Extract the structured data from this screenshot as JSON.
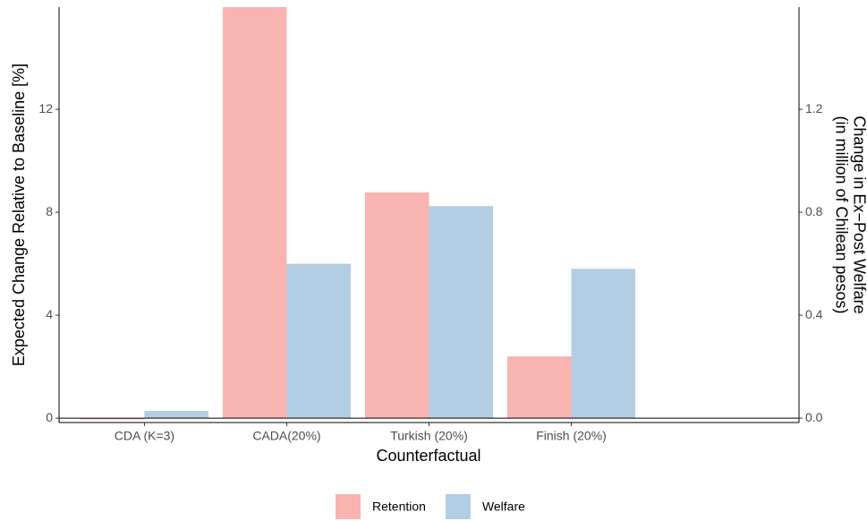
{
  "chart_data": {
    "type": "bar",
    "x_label": "Counterfactual",
    "y_label": "Expected Change Relative to Baseline [%]",
    "y2_label": [
      "Change in Ex−Post Welfare",
      "(in million of Chilean pesos)"
    ],
    "categories": [
      "CDA (K=3)",
      "CADA(20%)",
      "Turkish (20%)",
      "Finish (20%)"
    ],
    "series": [
      {
        "name": "Retention",
        "color": "#f8b4b0",
        "values": [
          -0.05,
          16,
          8.77,
          2.4
        ]
      },
      {
        "name": "Welfare",
        "color": "#b3cde3",
        "axis": "y2",
        "values": [
          0.028,
          0.6,
          0.824,
          0.58
        ]
      }
    ],
    "ylim": [
      -0.17,
      15.97
    ],
    "yticks": [
      0,
      4,
      8,
      12
    ],
    "y2lim": [
      -0.017,
      1.597
    ],
    "y2ticks": [
      {
        "value": 0,
        "label": "0.0"
      },
      0.4,
      0.8,
      1.2
    ],
    "legend_position": "bottom"
  }
}
